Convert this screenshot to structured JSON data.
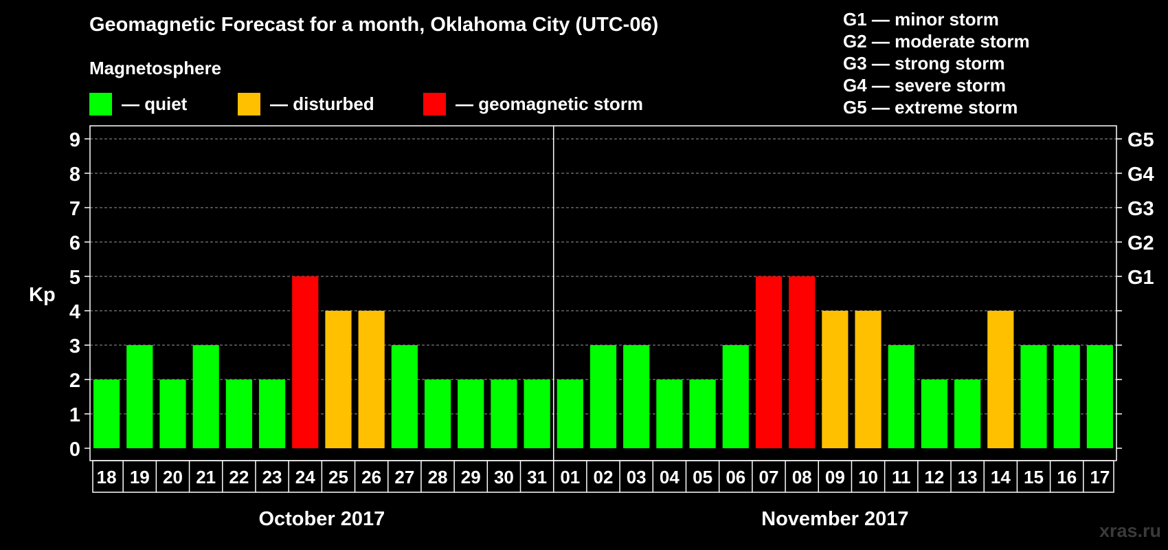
{
  "title": "Geomagnetic Forecast for a month, Oklahoma City (UTC-06)",
  "subtitle": "Magnetosphere",
  "legend": [
    {
      "label": "— quiet",
      "color": "#00ff00"
    },
    {
      "label": "— disturbed",
      "color": "#ffc000"
    },
    {
      "label": "— geomagnetic storm",
      "color": "#ff0000"
    }
  ],
  "g_levels": [
    "G1 — minor storm",
    "G2 — moderate storm",
    "G3 — strong storm",
    "G4 — severe storm",
    "G5 — extreme storm"
  ],
  "watermark": "xras.ru",
  "chart_data": {
    "type": "bar",
    "ylabel": "Kp",
    "ylim": [
      0,
      9
    ],
    "yticks": [
      0,
      1,
      2,
      3,
      4,
      5,
      6,
      7,
      8,
      9
    ],
    "right_axis_labels": [
      {
        "kp": 5,
        "label": "G1"
      },
      {
        "kp": 6,
        "label": "G2"
      },
      {
        "kp": 7,
        "label": "G3"
      },
      {
        "kp": 8,
        "label": "G4"
      },
      {
        "kp": 9,
        "label": "G5"
      }
    ],
    "categories": [
      "18",
      "19",
      "20",
      "21",
      "22",
      "23",
      "24",
      "25",
      "26",
      "27",
      "28",
      "29",
      "30",
      "31",
      "01",
      "02",
      "03",
      "04",
      "05",
      "06",
      "07",
      "08",
      "09",
      "10",
      "11",
      "12",
      "13",
      "14",
      "15",
      "16",
      "17"
    ],
    "values": [
      2,
      3,
      2,
      3,
      2,
      2,
      5,
      4,
      4,
      3,
      2,
      2,
      2,
      2,
      2,
      3,
      3,
      2,
      2,
      3,
      5,
      5,
      4,
      4,
      3,
      2,
      2,
      4,
      3,
      3,
      3
    ],
    "months": [
      {
        "label": "October 2017",
        "days": 14
      },
      {
        "label": "November 2017",
        "days": 17
      }
    ],
    "grid": true
  }
}
